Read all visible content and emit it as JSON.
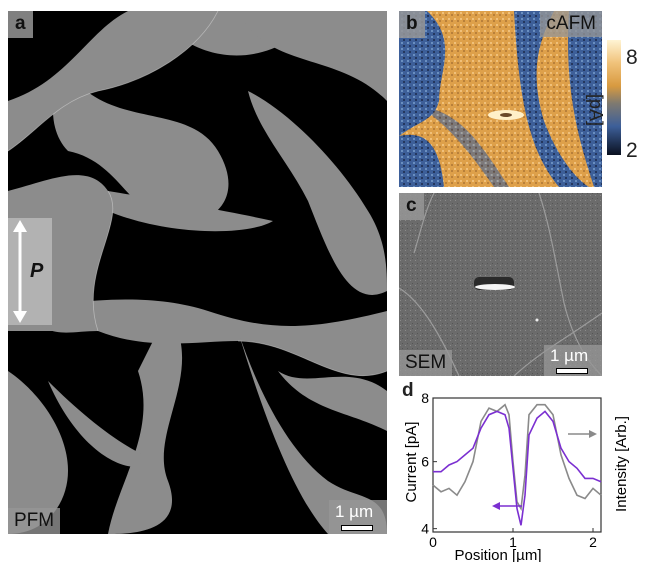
{
  "panels": {
    "a": {
      "tag": "a",
      "mode": "PFM",
      "scale": "1 µm",
      "polarization": "P"
    },
    "b": {
      "tag": "b",
      "mode": "cAFM",
      "colorbar": {
        "max": "8",
        "min": "2",
        "unit": "[pA]"
      }
    },
    "c": {
      "tag": "c",
      "mode": "SEM",
      "scale": "1 µm"
    },
    "d": {
      "tag": "d"
    }
  },
  "colors": {
    "pfm_domain": "#8c8c8c",
    "pfm_background": "#000000",
    "cafm_high": "#e9a54a",
    "cafm_low": "#3a5a94",
    "current_line": "#7b2fd1",
    "intensity_line": "#8a8a8a"
  },
  "chart_data": {
    "type": "line",
    "xlabel": "Position [µm]",
    "ylabel": "Current [pA]",
    "y2label": "Intensity [Arb.]",
    "xlim": [
      0,
      2.1
    ],
    "ylim": [
      3.9,
      7.9
    ],
    "xticks": [
      0,
      1,
      2
    ],
    "yticks": [
      4,
      6,
      8
    ],
    "series": [
      {
        "name": "",
        "color": "#7b2fd1",
        "x": [
          0,
          0.1,
          0.2,
          0.3,
          0.4,
          0.5,
          0.6,
          0.7,
          0.8,
          0.9,
          0.95,
          1.0,
          1.05,
          1.1,
          1.15,
          1.2,
          1.3,
          1.4,
          1.5,
          1.6,
          1.7,
          1.8,
          1.9,
          2.0,
          2.1
        ],
        "y": [
          5.7,
          5.7,
          5.9,
          6.0,
          6.2,
          6.4,
          7.0,
          7.4,
          7.5,
          7.4,
          7.0,
          5.8,
          4.6,
          4.1,
          5.0,
          6.8,
          7.3,
          7.5,
          7.2,
          6.4,
          6.0,
          5.8,
          5.5,
          5.5,
          5.4
        ]
      },
      {
        "name": "",
        "color": "#8a8a8a",
        "x": [
          0,
          0.1,
          0.2,
          0.3,
          0.4,
          0.5,
          0.6,
          0.7,
          0.8,
          0.9,
          0.95,
          1.0,
          1.05,
          1.1,
          1.15,
          1.2,
          1.3,
          1.4,
          1.5,
          1.6,
          1.7,
          1.8,
          1.9,
          2.0,
          2.1
        ],
        "y": [
          5.3,
          5.1,
          5.2,
          5.0,
          5.4,
          6.0,
          7.2,
          7.6,
          7.5,
          7.7,
          7.4,
          6.0,
          4.8,
          4.6,
          5.6,
          7.4,
          7.7,
          7.7,
          7.4,
          6.2,
          5.5,
          5.0,
          4.9,
          5.2,
          5.0
        ]
      }
    ]
  }
}
